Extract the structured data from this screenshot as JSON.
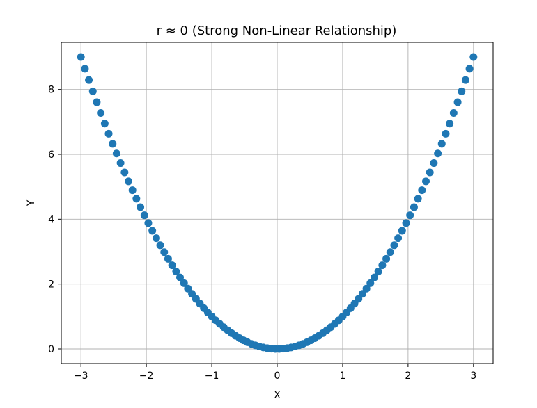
{
  "chart_data": {
    "type": "scatter",
    "title": "r ≈ 0 (Strong Non-Linear Relationship)",
    "xlabel": "X",
    "ylabel": "Y",
    "xlim": [
      -3.3,
      3.3
    ],
    "ylim": [
      -0.45,
      9.45
    ],
    "xticks": [
      -3,
      -2,
      -1,
      0,
      1,
      2,
      3
    ],
    "xtick_labels": [
      "−3",
      "−2",
      "−1",
      "0",
      "1",
      "2",
      "3"
    ],
    "yticks": [
      0,
      2,
      4,
      6,
      8
    ],
    "ytick_labels": [
      "0",
      "2",
      "4",
      "6",
      "8"
    ],
    "grid": true,
    "marker_color": "#1f77b4",
    "series": [
      {
        "x": [
          -3.0,
          -2.939,
          -2.879,
          -2.818,
          -2.758,
          -2.697,
          -2.636,
          -2.576,
          -2.515,
          -2.455,
          -2.394,
          -2.333,
          -2.273,
          -2.212,
          -2.152,
          -2.091,
          -2.03,
          -1.97,
          -1.909,
          -1.848,
          -1.788,
          -1.727,
          -1.667,
          -1.606,
          -1.545,
          -1.485,
          -1.424,
          -1.364,
          -1.303,
          -1.242,
          -1.182,
          -1.121,
          -1.061,
          -1.0,
          -0.939,
          -0.879,
          -0.818,
          -0.758,
          -0.697,
          -0.636,
          -0.576,
          -0.515,
          -0.455,
          -0.394,
          -0.333,
          -0.273,
          -0.212,
          -0.152,
          -0.091,
          -0.03,
          0.03,
          0.091,
          0.152,
          0.212,
          0.273,
          0.333,
          0.394,
          0.455,
          0.515,
          0.576,
          0.636,
          0.697,
          0.758,
          0.818,
          0.879,
          0.939,
          1.0,
          1.061,
          1.121,
          1.182,
          1.242,
          1.303,
          1.364,
          1.424,
          1.485,
          1.545,
          1.606,
          1.667,
          1.727,
          1.788,
          1.848,
          1.909,
          1.97,
          2.03,
          2.091,
          2.152,
          2.212,
          2.273,
          2.333,
          2.394,
          2.455,
          2.515,
          2.576,
          2.636,
          2.697,
          2.758,
          2.818,
          2.879,
          2.939,
          3.0
        ],
        "y": [
          9.0,
          8.638,
          8.289,
          7.942,
          7.606,
          7.274,
          6.949,
          6.636,
          6.325,
          6.027,
          5.731,
          5.443,
          5.166,
          4.893,
          4.631,
          4.372,
          4.121,
          3.881,
          3.644,
          3.415,
          3.197,
          2.983,
          2.779,
          2.579,
          2.387,
          2.205,
          2.028,
          1.86,
          1.698,
          1.543,
          1.397,
          1.257,
          1.126,
          1.0,
          0.882,
          0.773,
          0.669,
          0.575,
          0.486,
          0.404,
          0.332,
          0.265,
          0.207,
          0.155,
          0.111,
          0.075,
          0.045,
          0.023,
          0.008,
          0.001,
          0.001,
          0.008,
          0.023,
          0.045,
          0.075,
          0.111,
          0.155,
          0.207,
          0.265,
          0.332,
          0.404,
          0.486,
          0.575,
          0.669,
          0.773,
          0.882,
          1.0,
          1.126,
          1.257,
          1.397,
          1.543,
          1.698,
          1.86,
          2.028,
          2.205,
          2.387,
          2.579,
          2.779,
          2.983,
          3.197,
          3.415,
          3.644,
          3.881,
          4.121,
          4.372,
          4.631,
          4.893,
          5.166,
          5.443,
          5.731,
          6.027,
          6.325,
          6.636,
          6.949,
          7.274,
          7.606,
          7.942,
          8.289,
          8.638,
          9.0
        ]
      }
    ]
  }
}
